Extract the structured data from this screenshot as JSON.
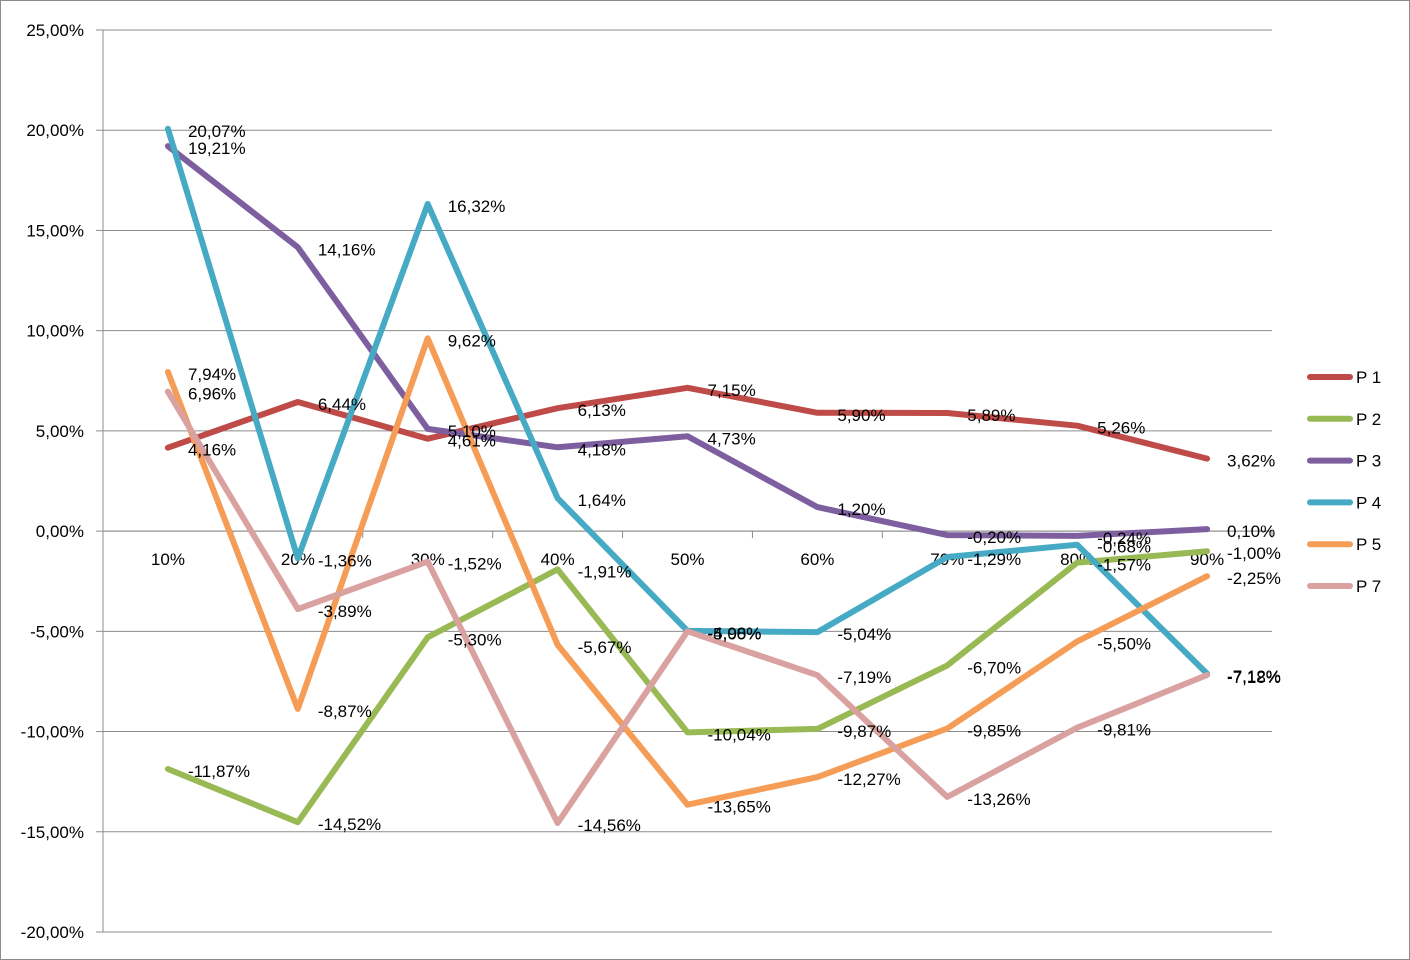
{
  "chart_data": {
    "type": "line",
    "title": "",
    "xlabel": "",
    "ylabel": "",
    "categories": [
      "10%",
      "20%",
      "30%",
      "40%",
      "50%",
      "60%",
      "70%",
      "80%",
      "90%"
    ],
    "y_ticks": [
      "25,00%",
      "20,00%",
      "15,00%",
      "10,00%",
      "5,00%",
      "0,00%",
      "-5,00%",
      "-10,00%",
      "-15,00%",
      "-20,00%"
    ],
    "ylim": [
      -20,
      25
    ],
    "grid": true,
    "legend_position": "right",
    "series": [
      {
        "name": "P 1",
        "color": "#BE4B48",
        "values": [
          4.16,
          6.44,
          4.61,
          6.13,
          7.15,
          5.9,
          5.89,
          5.26,
          3.62
        ],
        "labels": [
          "4,16%",
          "6,44%",
          "4,61%",
          "6,13%",
          "7,15%",
          "5,90%",
          "5,89%",
          "5,26%",
          "3,62%"
        ]
      },
      {
        "name": "P 2",
        "color": "#98B954",
        "values": [
          -11.87,
          -14.52,
          -5.3,
          -1.91,
          -10.04,
          -9.87,
          -6.7,
          -1.57,
          -1.0
        ],
        "labels": [
          "-11,87%",
          "-14,52%",
          "-5,30%",
          "-1,91%",
          "-10,04%",
          "-9,87%",
          "-6,70%",
          "-1,57%",
          "-1,00%"
        ]
      },
      {
        "name": "P 3",
        "color": "#7D5FA0",
        "values": [
          19.21,
          14.16,
          5.1,
          4.18,
          4.73,
          1.2,
          -0.2,
          -0.24,
          0.1
        ],
        "labels": [
          "19,21%",
          "14,16%",
          "5,10%",
          "4,18%",
          "4,73%",
          "1,20%",
          "-0,20%",
          "-0,24%",
          "0,10%"
        ]
      },
      {
        "name": "P 4",
        "color": "#46AAC4",
        "values": [
          20.07,
          -1.36,
          16.32,
          1.64,
          -4.98,
          -5.04,
          -1.29,
          -0.68,
          -7.12
        ],
        "labels": [
          "20,07%",
          "-1,36%",
          "16,32%",
          "1,64%",
          "-4,98%",
          "-5,04%",
          "-1,29%",
          "-0,68%",
          "-7,12%"
        ]
      },
      {
        "name": "P 5",
        "color": "#F59D56",
        "values": [
          7.94,
          -8.87,
          9.62,
          -5.67,
          -13.65,
          -12.27,
          -9.85,
          -5.5,
          -2.25
        ],
        "labels": [
          "7,94%",
          "-8,87%",
          "9,62%",
          "-5,67%",
          "-13,65%",
          "-12,27%",
          "-9,85%",
          "-5,50%",
          "-2,25%"
        ]
      },
      {
        "name": "P 7",
        "color": "#D9A19F",
        "values": [
          6.96,
          -3.89,
          -1.52,
          -14.56,
          -5.0,
          -7.19,
          -13.26,
          -9.81,
          -7.18
        ],
        "labels": [
          "6,96%",
          "-3,89%",
          "-1,52%",
          "-14,56%",
          "-5,00%",
          "-7,19%",
          "-13,26%",
          "-9,81%",
          "-7,18%"
        ]
      }
    ]
  }
}
